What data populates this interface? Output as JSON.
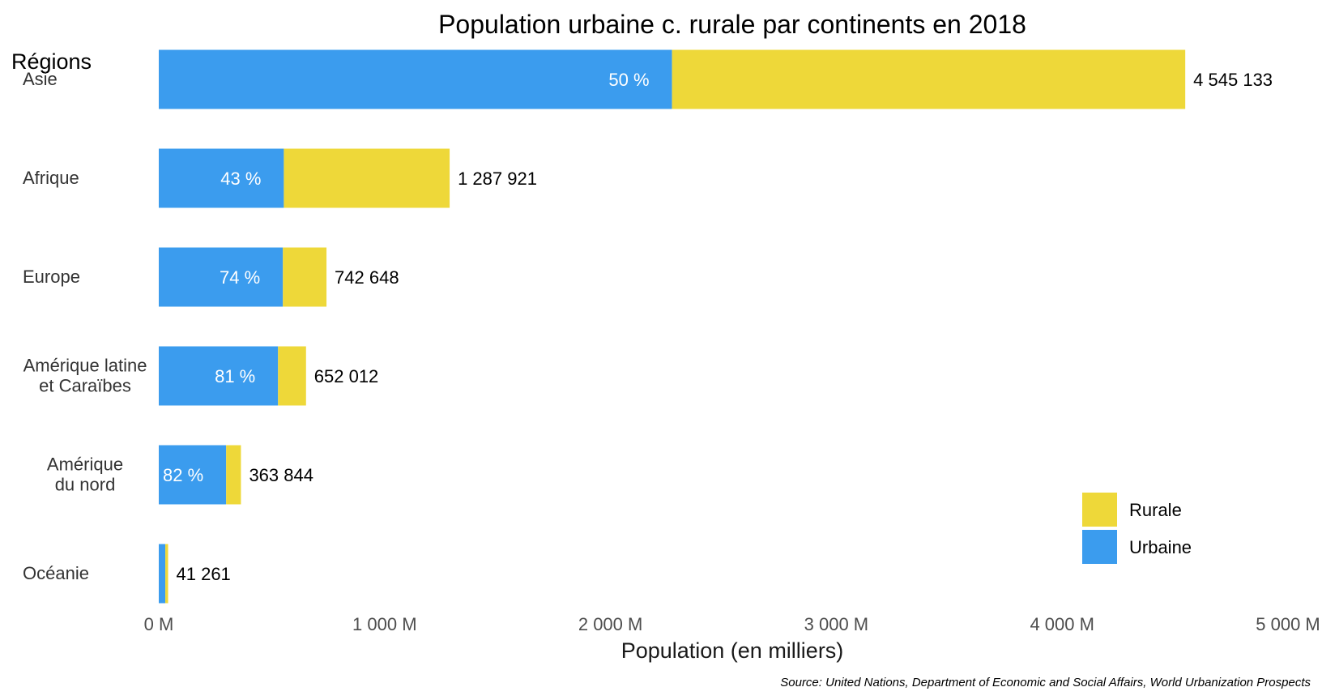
{
  "chart_data": {
    "type": "bar",
    "orientation": "horizontal",
    "stacked": true,
    "title": "Population urbaine c. rurale par continents en 2018",
    "ylabel": "Régions",
    "xlabel": "Population (en milliers)",
    "source": "Source: United Nations, Department of Economic and Social Affairs, World Urbanization Prospects",
    "categories": [
      "Asie",
      "Afrique",
      "Europe",
      "Amérique latine\net Caraïbes",
      "Amérique\ndu nord",
      "Océanie"
    ],
    "series": [
      {
        "name": "Urbaine",
        "color": "#3B9CEE",
        "values": [
          2272567,
          553806,
          549560,
          528130,
          298352,
          28883
        ]
      },
      {
        "name": "Rurale",
        "color": "#EED839",
        "values": [
          2272566,
          734115,
          193088,
          123882,
          65492,
          12378
        ]
      }
    ],
    "totals": [
      4545133,
      1287921,
      742648,
      652012,
      363844,
      41261
    ],
    "total_labels": [
      "4 545 133",
      "1 287 921",
      "742 648",
      "652 012",
      "363 844",
      "41 261"
    ],
    "urban_share_labels": [
      "50 %",
      "43 %",
      "74 %",
      "81 %",
      "82 %",
      ""
    ],
    "xlim": [
      0,
      5000000
    ],
    "xticks": [
      0,
      1000000,
      2000000,
      3000000,
      4000000,
      5000000
    ],
    "xtick_labels": [
      "0 M",
      "1 000 M",
      "2 000 M",
      "3 000 M",
      "4 000 M",
      "5 000 M"
    ],
    "legend": {
      "placement": "bottom-right",
      "entries": [
        {
          "label": "Rurale",
          "color": "#EED839"
        },
        {
          "label": "Urbaine",
          "color": "#3B9CEE"
        }
      ]
    },
    "grid": false
  }
}
